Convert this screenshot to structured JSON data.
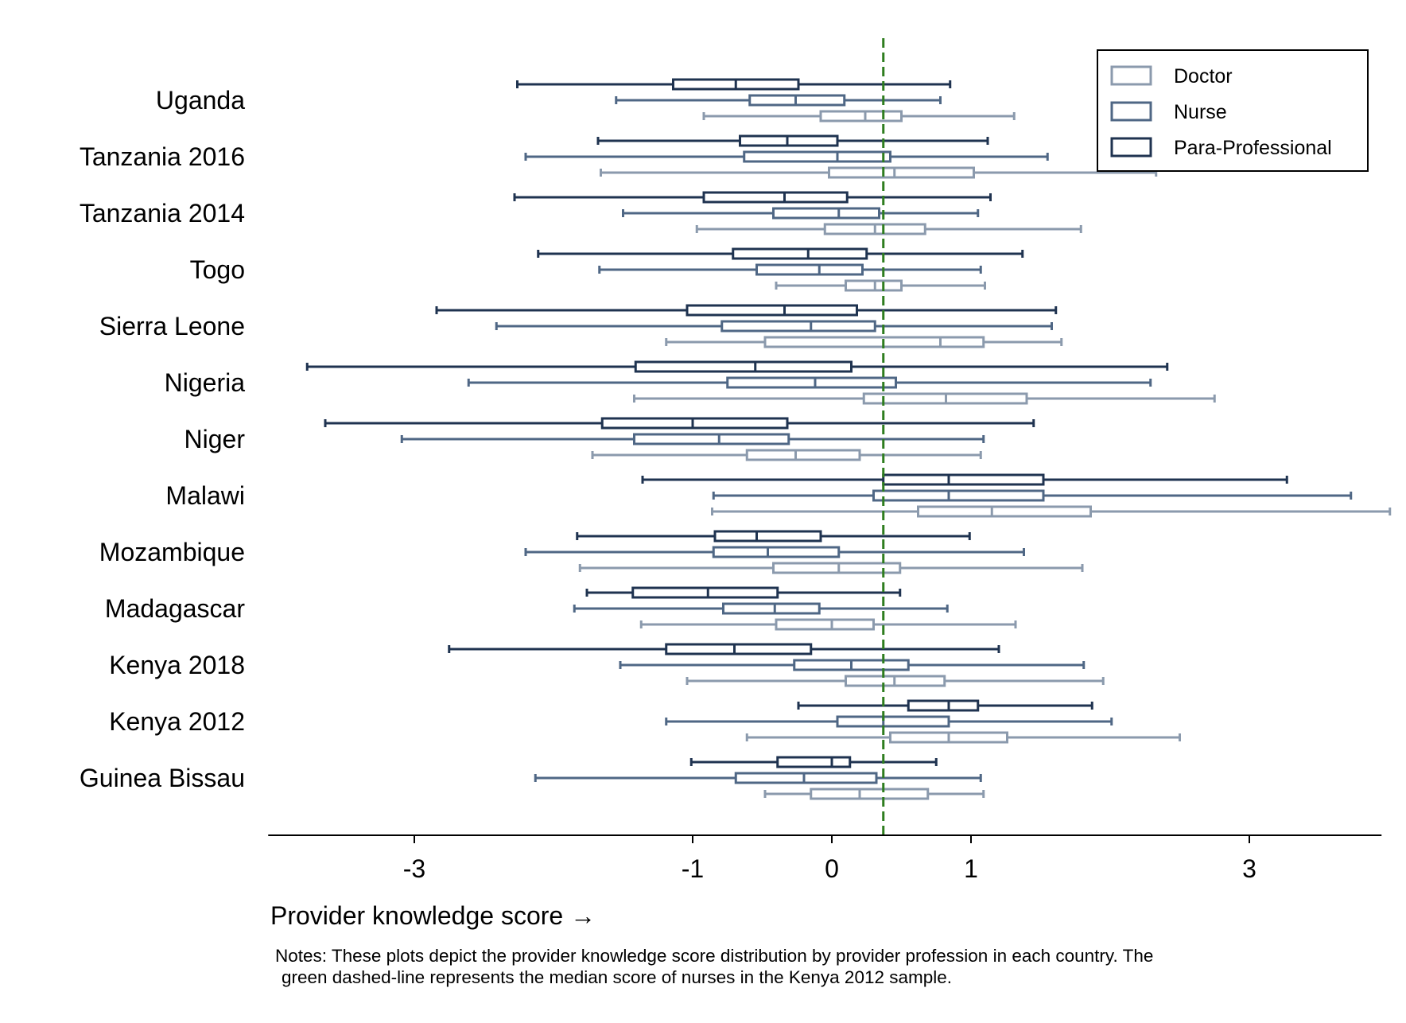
{
  "chart_data": {
    "type": "boxplot-horizontal",
    "xlabel": "Provider knowledge score →",
    "xticks": [
      -3,
      -1,
      0,
      1,
      3
    ],
    "xlim": [
      -4.05,
      3.95
    ],
    "reference_line": {
      "value": 0.37,
      "label": "median score of nurses in Kenya 2012",
      "color": "#2e7d1f"
    },
    "legend": {
      "position": "top-right",
      "entries": [
        {
          "name": "Doctor",
          "color": "#8b9aad"
        },
        {
          "name": "Nurse",
          "color": "#4f6785"
        },
        {
          "name": "Para-Professional",
          "color": "#1f3350"
        }
      ]
    },
    "categories": [
      "Uganda",
      "Tanzania 2016",
      "Tanzania 2014",
      "Togo",
      "Sierra Leone",
      "Nigeria",
      "Niger",
      "Malawi",
      "Mozambique",
      "Madagascar",
      "Kenya 2018",
      "Kenya 2012",
      "Guinea Bissau"
    ],
    "series": [
      {
        "name": "Para-Professional",
        "color": "#1f3350",
        "boxes": [
          [
            -2.26,
            -1.14,
            -0.69,
            -0.24,
            0.85
          ],
          [
            -1.68,
            -0.66,
            -0.32,
            0.04,
            1.12
          ],
          [
            -2.28,
            -0.92,
            -0.34,
            0.11,
            1.14
          ],
          [
            -2.11,
            -0.71,
            -0.17,
            0.25,
            1.37
          ],
          [
            -2.84,
            -1.04,
            -0.34,
            0.18,
            1.61
          ],
          [
            -3.77,
            -1.41,
            -0.55,
            0.14,
            2.41
          ],
          [
            -3.64,
            -1.65,
            -1.0,
            -0.32,
            1.45
          ],
          [
            -1.36,
            0.37,
            0.84,
            1.52,
            3.27
          ],
          [
            -1.83,
            -0.84,
            -0.54,
            -0.08,
            0.99
          ],
          [
            -1.76,
            -1.43,
            -0.89,
            -0.39,
            0.49
          ],
          [
            -2.75,
            -1.19,
            -0.7,
            -0.15,
            1.2
          ],
          [
            -0.24,
            0.55,
            0.84,
            1.05,
            1.87
          ],
          [
            -1.01,
            -0.39,
            0.0,
            0.13,
            0.75
          ]
        ]
      },
      {
        "name": "Nurse",
        "color": "#4f6785",
        "boxes": [
          [
            -1.55,
            -0.59,
            -0.26,
            0.09,
            0.78
          ],
          [
            -2.2,
            -0.63,
            0.04,
            0.42,
            1.55
          ],
          [
            -1.5,
            -0.42,
            0.05,
            0.34,
            1.05
          ],
          [
            -1.67,
            -0.54,
            -0.09,
            0.22,
            1.07
          ],
          [
            -2.41,
            -0.79,
            -0.15,
            0.31,
            1.58
          ],
          [
            -2.61,
            -0.75,
            -0.12,
            0.46,
            2.29
          ],
          [
            -3.09,
            -1.42,
            -0.81,
            -0.31,
            1.09
          ],
          [
            -0.85,
            0.3,
            0.84,
            1.52,
            3.73
          ],
          [
            -2.2,
            -0.85,
            -0.46,
            0.05,
            1.38
          ],
          [
            -1.85,
            -0.78,
            -0.41,
            -0.09,
            0.83
          ],
          [
            -1.52,
            -0.27,
            0.14,
            0.55,
            1.81
          ],
          [
            -1.19,
            0.04,
            0.37,
            0.84,
            2.01
          ],
          [
            -2.13,
            -0.69,
            -0.2,
            0.32,
            1.07
          ]
        ]
      },
      {
        "name": "Doctor",
        "color": "#8b9aad",
        "boxes": [
          [
            -0.92,
            -0.08,
            0.24,
            0.5,
            1.31
          ],
          [
            -1.66,
            -0.02,
            0.45,
            1.02,
            2.33
          ],
          [
            -0.97,
            -0.05,
            0.31,
            0.67,
            1.79
          ],
          [
            -0.4,
            0.1,
            0.31,
            0.5,
            1.1
          ],
          [
            -1.19,
            -0.48,
            0.78,
            1.09,
            1.65
          ],
          [
            -1.42,
            0.23,
            0.82,
            1.4,
            2.75
          ],
          [
            -1.72,
            -0.61,
            -0.26,
            0.2,
            1.07
          ],
          [
            -0.86,
            0.62,
            1.15,
            1.86,
            4.01
          ],
          [
            -1.81,
            -0.42,
            0.05,
            0.49,
            1.8
          ],
          [
            -1.37,
            -0.4,
            0.0,
            0.3,
            1.32
          ],
          [
            -1.04,
            0.1,
            0.45,
            0.81,
            1.95
          ],
          [
            -0.61,
            0.42,
            0.84,
            1.26,
            2.5
          ],
          [
            -0.48,
            -0.15,
            0.2,
            0.69,
            1.09
          ]
        ]
      }
    ]
  },
  "notes": {
    "line1": "Notes: These plots depict the provider knowledge score distribution by provider profession in each country. The",
    "line2": "green dashed-line represents the median score of nurses in the Kenya 2012 sample."
  }
}
